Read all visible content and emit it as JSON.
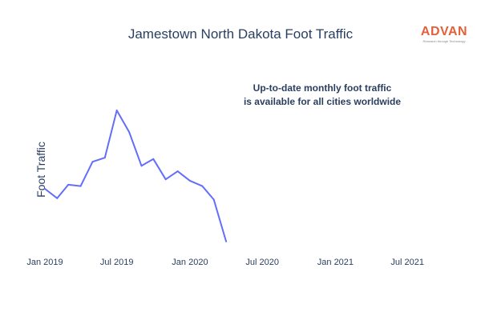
{
  "brand": {
    "name": "ADVAN",
    "tagline": "Research through Technology",
    "color": "#e4603b"
  },
  "chart_data": {
    "type": "line",
    "title": "Jamestown North Dakota Foot Traffic",
    "annotation_lines": [
      "Up-to-date monthly foot traffic",
      "is available for all cities worldwide"
    ],
    "xlabel": "",
    "ylabel": "Foot Traffic",
    "x_tick_labels": [
      "Jan 2019",
      "Jul 2019",
      "Jan 2020",
      "Jul 2020",
      "Jan 2021",
      "Jul 2021"
    ],
    "x_ticks": [
      "2019-01",
      "2019-07",
      "2020-01",
      "2020-07",
      "2021-01",
      "2021-07"
    ],
    "xlim": [
      "2018-12-24",
      "2021-08-10"
    ],
    "ylim": [
      0.15,
      1.0
    ],
    "y_values_note": "",
    "grid": false,
    "line_color": "#636efa",
    "series": [
      {
        "x": [
          "2019-01",
          "2019-02",
          "2019-03",
          "2019-04",
          "2019-05",
          "2019-06",
          "2019-07",
          "2019-08",
          "2019-09",
          "2019-10",
          "2019-11",
          "2019-12",
          "2020-01",
          "2020-02",
          "2020-03",
          "2020-04"
        ],
        "values": [
          0.42,
          0.35,
          0.45,
          0.44,
          0.62,
          0.65,
          1.0,
          0.84,
          0.59,
          0.64,
          0.49,
          0.55,
          0.48,
          0.44,
          0.34,
          0.03
        ]
      }
    ]
  }
}
